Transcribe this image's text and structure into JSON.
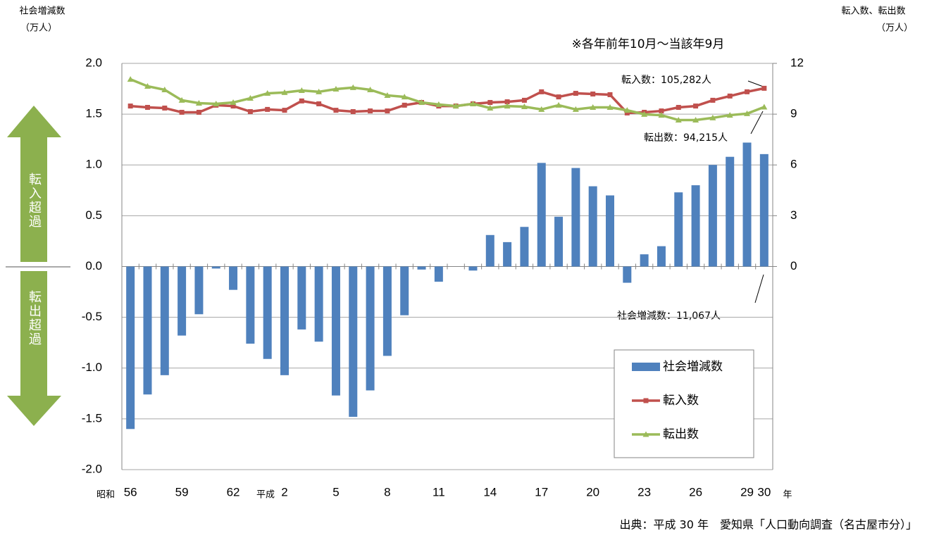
{
  "chart_data": {
    "type": "bar_line",
    "ylabel": "社会増減数",
    "ylabel_unit": "（万人）",
    "y2label": "転入数、転出数",
    "y2label_unit": "（万人）",
    "note": "※各年前年10月～当該年9月",
    "source": "出典：平成 30 年　愛知県「人口動向調査（名古屋市分）」",
    "era_labels": [
      "昭和",
      "平成",
      "年"
    ],
    "arrow_labels": [
      "転入超過",
      "転出超過"
    ],
    "annotations": [
      "転入数：105,282人",
      "転出数：94,215人",
      "社会増減数：11,067人"
    ],
    "categories": [
      "56",
      null,
      null,
      "59",
      null,
      null,
      "62",
      null,
      null,
      "2",
      null,
      null,
      "5",
      null,
      null,
      "8",
      null,
      null,
      "11",
      null,
      null,
      "14",
      null,
      null,
      "17",
      null,
      null,
      "20",
      null,
      null,
      "23",
      null,
      null,
      "26",
      null,
      null,
      "29",
      "30"
    ],
    "ylim": [
      -2,
      2
    ],
    "yticks": [
      {
        "value": -2,
        "label": "-2.0"
      },
      {
        "value": -1.5,
        "label": "-1.5"
      },
      {
        "value": -1,
        "label": "-1.0"
      },
      {
        "value": -0.5,
        "label": "-0.5"
      },
      {
        "value": 0,
        "label": "0.0"
      },
      {
        "value": 0.5,
        "label": "0.5"
      },
      {
        "value": 1,
        "label": "1.0"
      },
      {
        "value": 1.5,
        "label": "1.5"
      },
      {
        "value": 2,
        "label": "2.0"
      }
    ],
    "y2lim": [
      -12,
      12
    ],
    "y2ticks": [
      0,
      3,
      6,
      9,
      12
    ],
    "grid": true,
    "series": [
      {
        "name": "社会増減数",
        "type": "bar",
        "color": "#4f81bd",
        "values": [
          -1.6,
          -1.26,
          -1.07,
          -0.68,
          -0.47,
          -0.02,
          -0.23,
          -0.76,
          -0.91,
          -1.07,
          -0.62,
          -0.74,
          -1.27,
          -1.48,
          -1.22,
          -0.88,
          -0.48,
          -0.03,
          -0.15,
          0,
          -0.04,
          0.31,
          0.24,
          0.39,
          1.02,
          0.49,
          0.97,
          0.79,
          0.7,
          -0.16,
          0.12,
          0.2,
          0.73,
          0.8,
          1.0,
          1.08,
          1.22,
          1.1067
        ]
      },
      {
        "name": "転入数",
        "type": "line",
        "axis": "y2",
        "color": "#c0504d",
        "marker": "square",
        "values": [
          9.48,
          9.4,
          9.36,
          9.11,
          9.11,
          9.53,
          9.48,
          9.15,
          9.28,
          9.23,
          9.78,
          9.61,
          9.23,
          9.15,
          9.19,
          9.19,
          9.53,
          9.69,
          9.48,
          9.48,
          9.61,
          9.69,
          9.73,
          9.82,
          10.32,
          10.02,
          10.23,
          10.19,
          10.15,
          9.07,
          9.11,
          9.19,
          9.4,
          9.48,
          9.82,
          10.07,
          10.32,
          10.5282
        ]
      },
      {
        "name": "転出数",
        "type": "line",
        "axis": "y2",
        "color": "#9bbb59",
        "marker": "triangle",
        "values": [
          11.06,
          10.65,
          10.44,
          9.82,
          9.65,
          9.61,
          9.69,
          9.94,
          10.23,
          10.28,
          10.4,
          10.32,
          10.48,
          10.57,
          10.44,
          10.11,
          10.02,
          9.69,
          9.57,
          9.48,
          9.61,
          9.36,
          9.48,
          9.44,
          9.28,
          9.53,
          9.28,
          9.4,
          9.4,
          9.23,
          8.99,
          8.94,
          8.65,
          8.65,
          8.78,
          8.94,
          9.03,
          9.4215
        ]
      }
    ]
  }
}
